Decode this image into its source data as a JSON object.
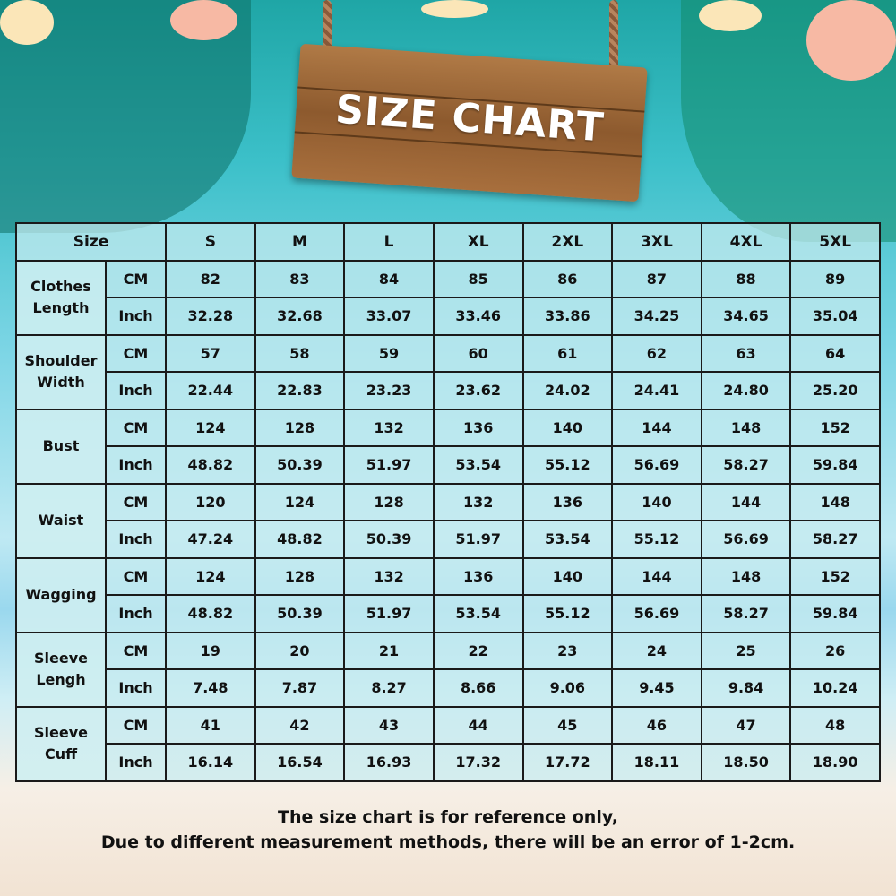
{
  "title": "SIZE CHART",
  "chart_data": {
    "type": "table",
    "corner_header": "Size",
    "columns": [
      "S",
      "M",
      "L",
      "XL",
      "2XL",
      "3XL",
      "4XL",
      "5XL"
    ],
    "rows": [
      {
        "measure": "Clothes Length",
        "cm": [
          "82",
          "83",
          "84",
          "85",
          "86",
          "87",
          "88",
          "89"
        ],
        "inch": [
          "32.28",
          "32.68",
          "33.07",
          "33.46",
          "33.86",
          "34.25",
          "34.65",
          "35.04"
        ]
      },
      {
        "measure": "Shoulder Width",
        "cm": [
          "57",
          "58",
          "59",
          "60",
          "61",
          "62",
          "63",
          "64"
        ],
        "inch": [
          "22.44",
          "22.83",
          "23.23",
          "23.62",
          "24.02",
          "24.41",
          "24.80",
          "25.20"
        ]
      },
      {
        "measure": "Bust",
        "cm": [
          "124",
          "128",
          "132",
          "136",
          "140",
          "144",
          "148",
          "152"
        ],
        "inch": [
          "48.82",
          "50.39",
          "51.97",
          "53.54",
          "55.12",
          "56.69",
          "58.27",
          "59.84"
        ]
      },
      {
        "measure": "Waist",
        "cm": [
          "120",
          "124",
          "128",
          "132",
          "136",
          "140",
          "144",
          "148"
        ],
        "inch": [
          "47.24",
          "48.82",
          "50.39",
          "51.97",
          "53.54",
          "55.12",
          "56.69",
          "58.27"
        ]
      },
      {
        "measure": "Wagging",
        "cm": [
          "124",
          "128",
          "132",
          "136",
          "140",
          "144",
          "148",
          "152"
        ],
        "inch": [
          "48.82",
          "50.39",
          "51.97",
          "53.54",
          "55.12",
          "56.69",
          "58.27",
          "59.84"
        ]
      },
      {
        "measure": "Sleeve Lengh",
        "cm": [
          "19",
          "20",
          "21",
          "22",
          "23",
          "24",
          "25",
          "26"
        ],
        "inch": [
          "7.48",
          "7.87",
          "8.27",
          "8.66",
          "9.06",
          "9.45",
          "9.84",
          "10.24"
        ]
      },
      {
        "measure": "Sleeve Cuff",
        "cm": [
          "41",
          "42",
          "43",
          "44",
          "45",
          "46",
          "47",
          "48"
        ],
        "inch": [
          "16.14",
          "16.54",
          "16.93",
          "17.32",
          "17.72",
          "18.11",
          "18.50",
          "18.90"
        ]
      }
    ],
    "unit_labels": {
      "cm": "CM",
      "inch": "Inch"
    }
  },
  "note": {
    "line1": "The size chart is for reference only,",
    "line2": "Due to different measurement methods, there will be an error of 1-2cm."
  }
}
